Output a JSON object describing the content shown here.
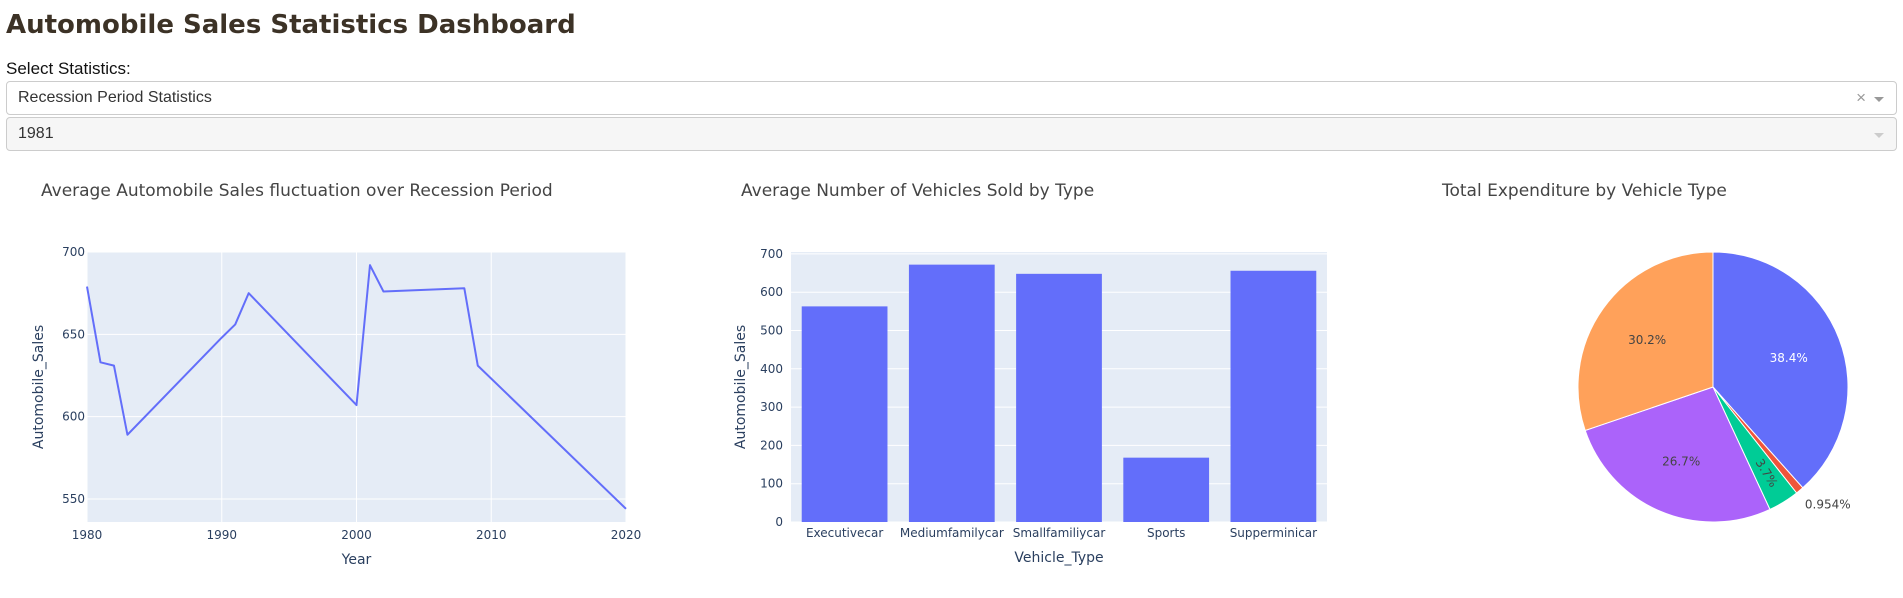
{
  "header": {
    "title": "Automobile Sales Statistics Dashboard"
  },
  "controls": {
    "select_label": "Select Statistics:",
    "statistics_dropdown": {
      "value": "Recession Period Statistics",
      "clear_symbol": "×"
    },
    "year_dropdown": {
      "value": "1981"
    }
  },
  "colors": {
    "plot_bg": "#E5ECF6",
    "grid": "#FFFFFF",
    "primary": "#636EFA",
    "pie": [
      "#636EFA",
      "#EF553B",
      "#00CC96",
      "#AB63FA",
      "#FFA15A"
    ]
  },
  "chart_data": [
    {
      "type": "line",
      "title": "Average Automobile Sales fluctuation over Recession Period",
      "xlabel": "Year",
      "ylabel": "Automobile_Sales",
      "x": [
        1980,
        1981,
        1982,
        1983,
        1990,
        1991,
        1992,
        2000,
        2001,
        2002,
        2008,
        2009,
        2020
      ],
      "y": [
        679,
        633,
        631,
        589,
        648,
        656,
        675,
        607,
        692,
        676,
        678,
        631,
        544
      ],
      "xlim": [
        1980,
        2020
      ],
      "ylim": [
        536,
        700
      ],
      "xticks": [
        1980,
        1990,
        2000,
        2010,
        2020
      ],
      "yticks": [
        550,
        600,
        650,
        700
      ],
      "grid": true
    },
    {
      "type": "bar",
      "title": "Average Number of Vehicles Sold by Type",
      "xlabel": "Vehicle_Type",
      "ylabel": "Automobile_Sales",
      "categories": [
        "Executivecar",
        "Mediumfamilycar",
        "Smallfamiliycar",
        "Sports",
        "Supperminicar"
      ],
      "values": [
        563,
        672,
        648,
        168,
        656
      ],
      "ylim": [
        0,
        705
      ],
      "yticks": [
        0,
        100,
        200,
        300,
        400,
        500,
        600,
        700
      ],
      "grid": true
    },
    {
      "type": "pie",
      "title": "Total Expenditure by Vehicle Type",
      "values": [
        38.4,
        0.954,
        3.7,
        26.7,
        30.2
      ],
      "labels": [
        "38.4%",
        "0.954%",
        "3.7%",
        "26.7%",
        "30.2%"
      ]
    }
  ]
}
